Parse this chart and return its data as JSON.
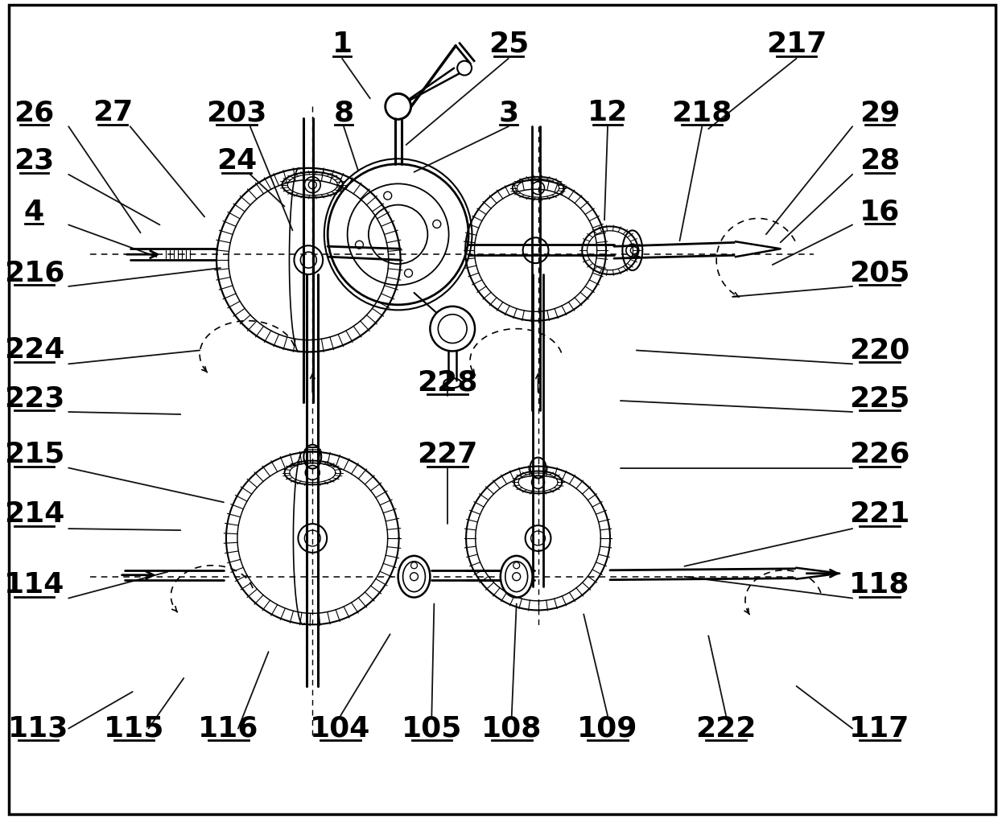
{
  "bg_color": "#ffffff",
  "line_color": "#000000",
  "figsize": [
    12.4,
    10.18
  ],
  "dpi": 100,
  "lw_main": 1.8,
  "lw_thin": 1.0,
  "lw_dash": 1.0,
  "fs_label": 26,
  "labels": [
    [
      "1",
      420,
      52
    ],
    [
      "25",
      628,
      52
    ],
    [
      "217",
      988,
      52
    ],
    [
      "26",
      35,
      138
    ],
    [
      "27",
      133,
      138
    ],
    [
      "203",
      288,
      138
    ],
    [
      "8",
      422,
      138
    ],
    [
      "3",
      628,
      138
    ],
    [
      "12",
      752,
      138
    ],
    [
      "218",
      870,
      138
    ],
    [
      "29",
      1092,
      138
    ],
    [
      "23",
      35,
      198
    ],
    [
      "24",
      288,
      198
    ],
    [
      "28",
      1092,
      198
    ],
    [
      "4",
      35,
      262
    ],
    [
      "16",
      1092,
      262
    ],
    [
      "216",
      35,
      338
    ],
    [
      "205",
      1092,
      338
    ],
    [
      "224",
      35,
      435
    ],
    [
      "220",
      1092,
      435
    ],
    [
      "228",
      552,
      475
    ],
    [
      "223",
      35,
      495
    ],
    [
      "225",
      1092,
      495
    ],
    [
      "227",
      552,
      565
    ],
    [
      "215",
      35,
      565
    ],
    [
      "226",
      1092,
      565
    ],
    [
      "214",
      35,
      640
    ],
    [
      "221",
      1092,
      640
    ],
    [
      "114",
      35,
      728
    ],
    [
      "118",
      1092,
      728
    ],
    [
      "113",
      40,
      908
    ],
    [
      "115",
      160,
      908
    ],
    [
      "116",
      278,
      908
    ],
    [
      "104",
      418,
      908
    ],
    [
      "105",
      532,
      908
    ],
    [
      "108",
      632,
      908
    ],
    [
      "109",
      752,
      908
    ],
    [
      "222",
      900,
      908
    ],
    [
      "117",
      1092,
      908
    ]
  ],
  "leader_lines": [
    [
      420,
      70,
      455,
      120
    ],
    [
      628,
      70,
      500,
      178
    ],
    [
      988,
      70,
      878,
      158
    ],
    [
      78,
      155,
      168,
      288
    ],
    [
      155,
      155,
      248,
      268
    ],
    [
      305,
      155,
      358,
      285
    ],
    [
      422,
      155,
      440,
      210
    ],
    [
      628,
      155,
      510,
      212
    ],
    [
      752,
      155,
      748,
      272
    ],
    [
      870,
      155,
      842,
      298
    ],
    [
      1058,
      155,
      950,
      290
    ],
    [
      78,
      215,
      192,
      278
    ],
    [
      305,
      215,
      348,
      255
    ],
    [
      1058,
      215,
      968,
      300
    ],
    [
      78,
      278,
      188,
      318
    ],
    [
      1058,
      278,
      958,
      328
    ],
    [
      78,
      355,
      268,
      332
    ],
    [
      1058,
      355,
      908,
      368
    ],
    [
      78,
      452,
      242,
      435
    ],
    [
      1058,
      452,
      788,
      435
    ],
    [
      552,
      492,
      552,
      462
    ],
    [
      78,
      512,
      218,
      515
    ],
    [
      1058,
      512,
      768,
      498
    ],
    [
      552,
      582,
      552,
      655
    ],
    [
      78,
      582,
      272,
      625
    ],
    [
      1058,
      582,
      768,
      582
    ],
    [
      78,
      658,
      218,
      660
    ],
    [
      1058,
      658,
      848,
      705
    ],
    [
      78,
      745,
      202,
      712
    ],
    [
      1058,
      745,
      848,
      718
    ],
    [
      78,
      908,
      158,
      862
    ],
    [
      178,
      908,
      222,
      845
    ],
    [
      290,
      908,
      328,
      812
    ],
    [
      418,
      892,
      480,
      790
    ],
    [
      532,
      892,
      535,
      752
    ],
    [
      632,
      892,
      638,
      752
    ],
    [
      752,
      892,
      722,
      765
    ],
    [
      900,
      892,
      878,
      792
    ],
    [
      1058,
      908,
      988,
      855
    ]
  ]
}
